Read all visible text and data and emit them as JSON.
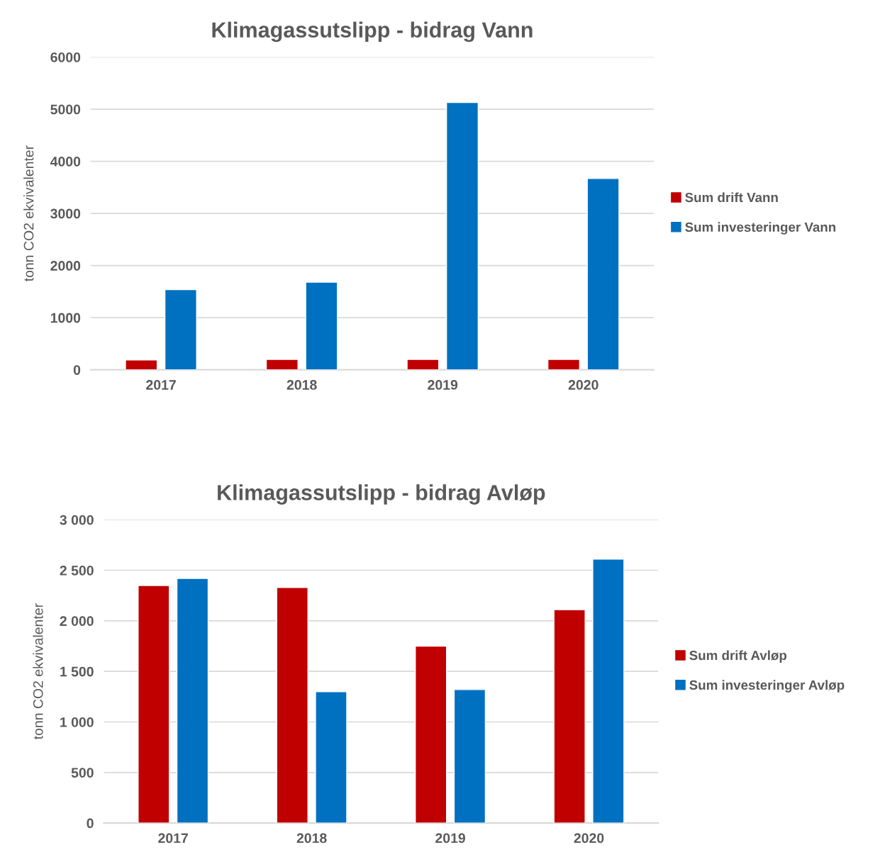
{
  "chart_data": [
    {
      "type": "bar",
      "title": "Klimagassutslipp - bidrag Vann",
      "ylabel": "tonn CO2 ekvivalenter",
      "categories": [
        "2017",
        "2018",
        "2019",
        "2020"
      ],
      "series": [
        {
          "name": "Sum drift Vann",
          "color": "#c00000",
          "values": [
            190,
            200,
            200,
            200
          ]
        },
        {
          "name": "Sum investeringer Vann",
          "color": "#0070c0",
          "values": [
            1540,
            1680,
            5130,
            3670
          ]
        }
      ],
      "ylim": [
        0,
        6000
      ],
      "yticks": [
        0,
        1000,
        2000,
        3000,
        4000,
        5000,
        6000
      ],
      "grid": "y",
      "legend": "right"
    },
    {
      "type": "bar",
      "title": "Klimagassutslipp - bidrag Avløp",
      "ylabel": "tonn CO2 ekvivalenter",
      "categories": [
        "2017",
        "2018",
        "2019",
        "2020"
      ],
      "series": [
        {
          "name": "Sum drift Avløp",
          "color": "#c00000",
          "values": [
            2350,
            2330,
            1750,
            2110
          ]
        },
        {
          "name": "Sum investeringer Avløp",
          "color": "#0070c0",
          "values": [
            2420,
            1300,
            1320,
            2610
          ]
        }
      ],
      "ylim": [
        0,
        3000
      ],
      "yticks": [
        0,
        {
          "value": 500,
          "label": "500"
        },
        {
          "value": 1000,
          "label": "1 000"
        },
        {
          "value": 1500,
          "label": "1 500"
        },
        {
          "value": 2000,
          "label": "2 000"
        },
        {
          "value": 2500,
          "label": "2 500"
        },
        {
          "value": 3000,
          "label": "3 000"
        }
      ],
      "grid": "y",
      "legend": "right"
    }
  ]
}
